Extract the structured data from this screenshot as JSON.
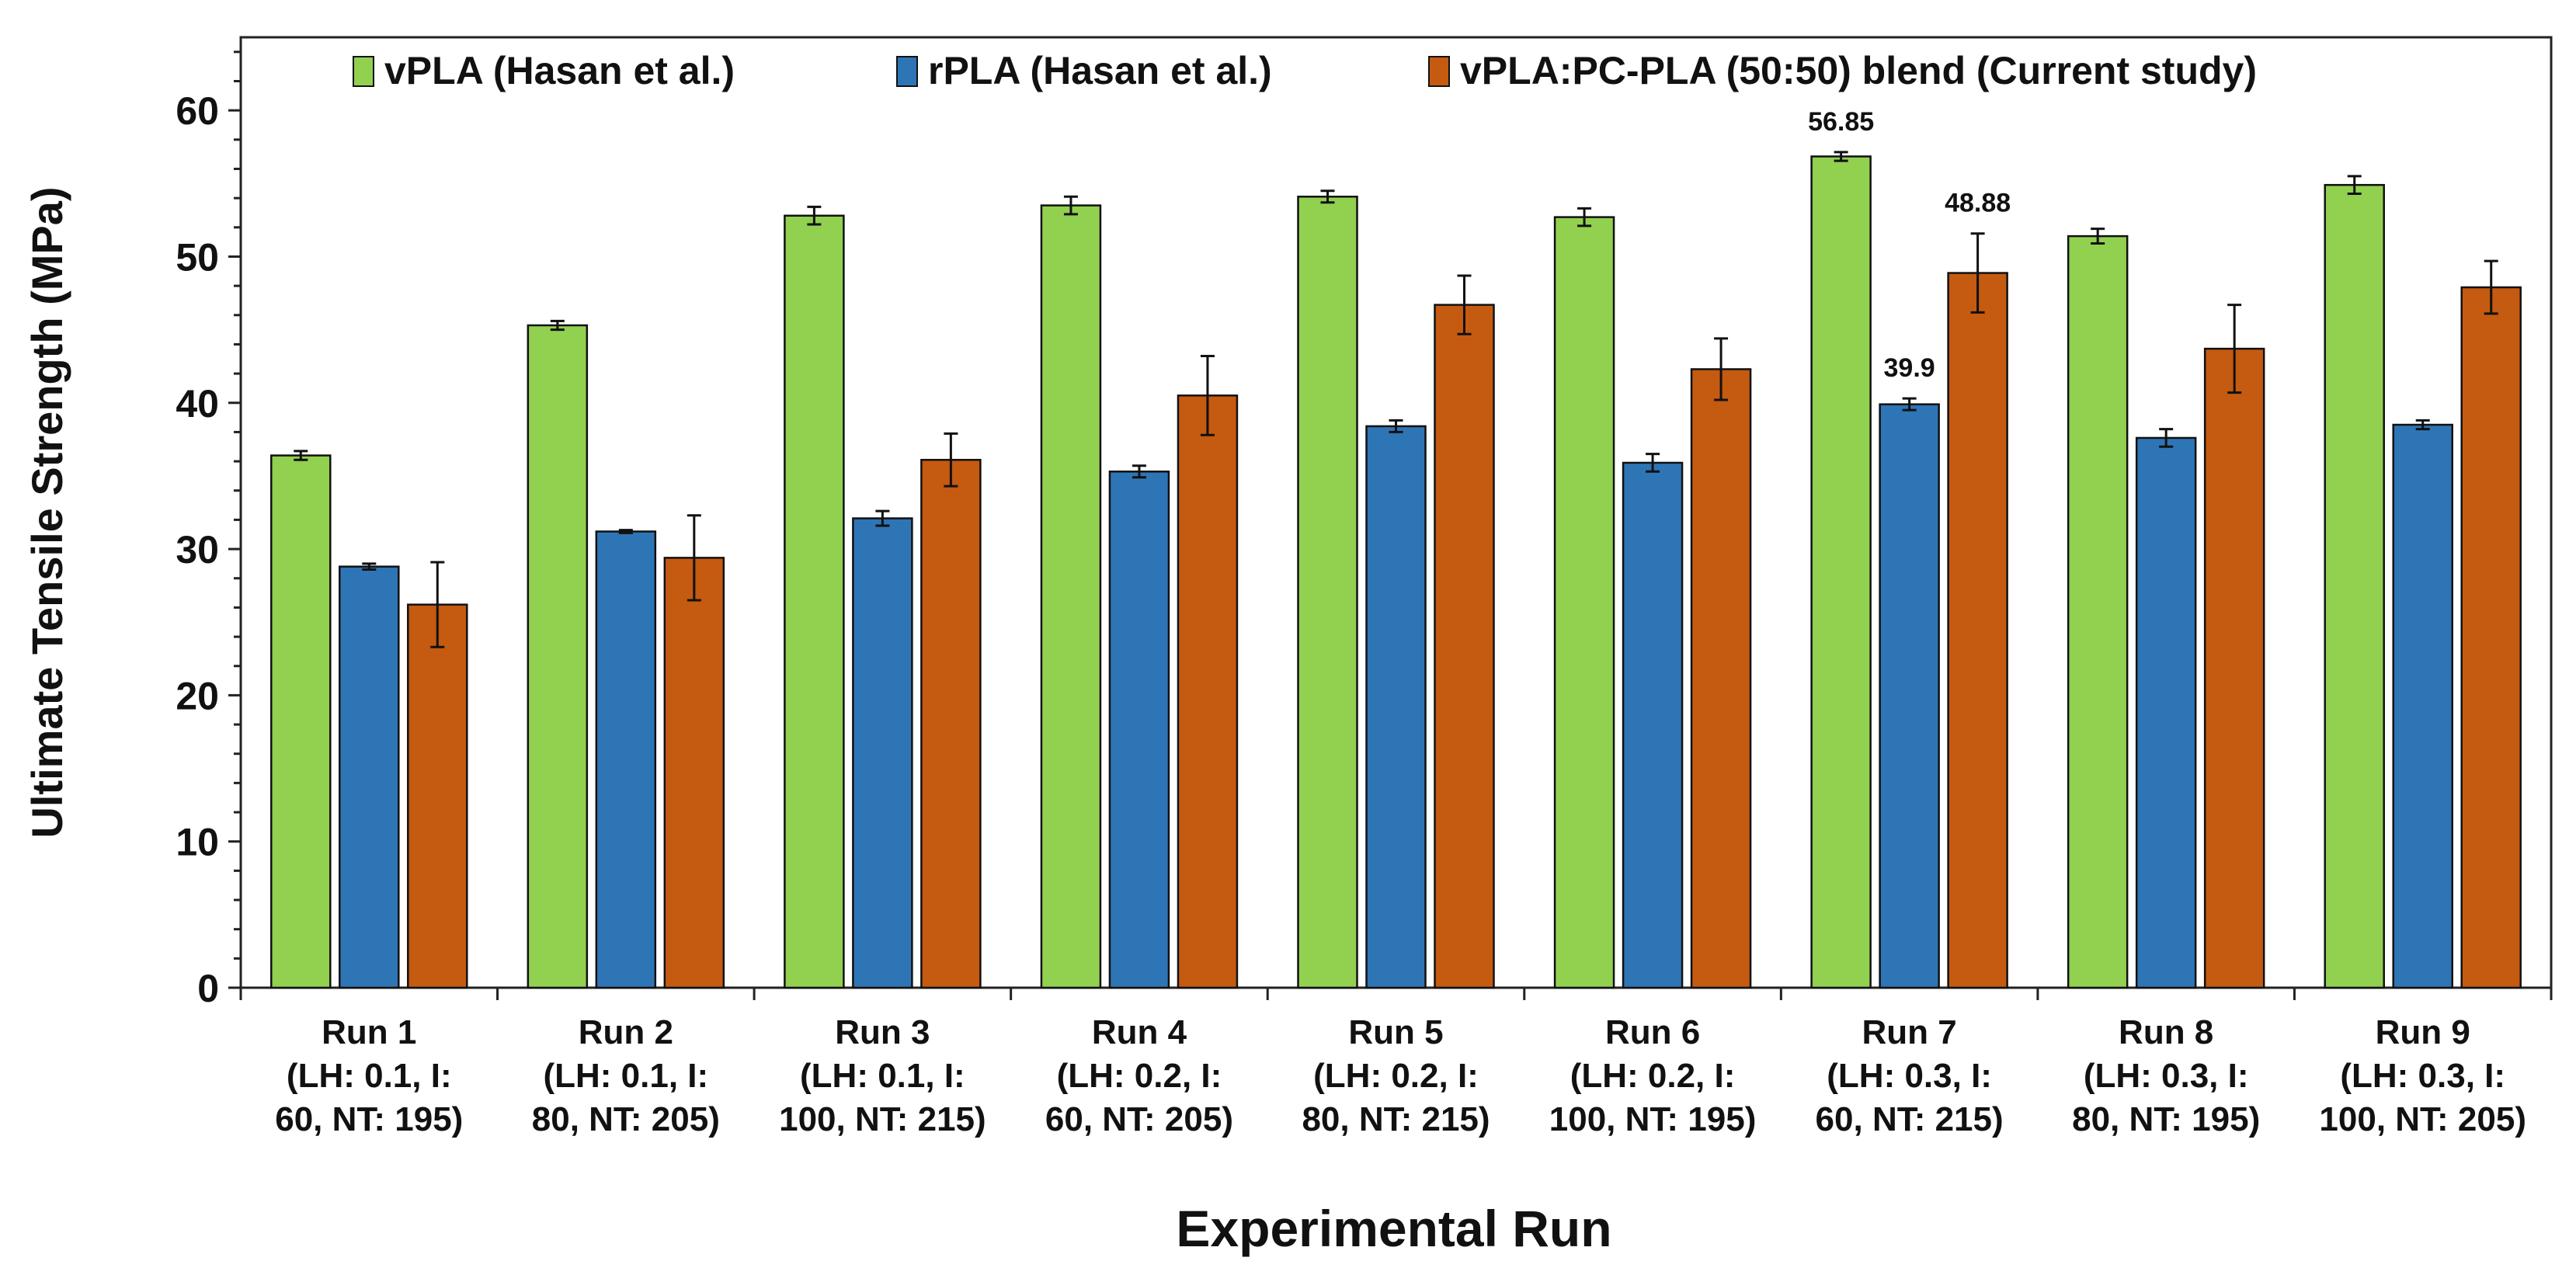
{
  "chart_data": {
    "type": "bar",
    "title": "",
    "xlabel": "Experimental Run",
    "ylabel": "Ultimate Tensile Strength (MPa)",
    "ylim": [
      0,
      65
    ],
    "yticks": [
      0,
      10,
      20,
      30,
      40,
      50,
      60
    ],
    "grid": false,
    "legend_position": "top",
    "categories": [
      {
        "name": "Run 1",
        "lines": [
          "Run 1",
          "(LH: 0.1, I:",
          "60, NT: 195)"
        ]
      },
      {
        "name": "Run 2",
        "lines": [
          "Run 2",
          "(LH: 0.1, I:",
          "80, NT: 205)"
        ]
      },
      {
        "name": "Run 3",
        "lines": [
          "Run 3",
          "(LH: 0.1, I:",
          "100, NT: 215)"
        ]
      },
      {
        "name": "Run 4",
        "lines": [
          "Run 4",
          "(LH: 0.2, I:",
          "60, NT: 205)"
        ]
      },
      {
        "name": "Run 5",
        "lines": [
          "Run 5",
          "(LH: 0.2, I:",
          "80, NT: 215)"
        ]
      },
      {
        "name": "Run 6",
        "lines": [
          "Run 6",
          "(LH: 0.2, I:",
          "100, NT: 195)"
        ]
      },
      {
        "name": "Run 7",
        "lines": [
          "Run 7",
          "(LH: 0.3, I:",
          "60, NT: 215)"
        ]
      },
      {
        "name": "Run 8",
        "lines": [
          "Run 8",
          "(LH: 0.3, I:",
          "80, NT: 195)"
        ]
      },
      {
        "name": "Run 9",
        "lines": [
          "Run 9",
          "(LH: 0.3, I:",
          "100, NT: 205)"
        ]
      }
    ],
    "series": [
      {
        "name": "vPLA (Hasan et al.)",
        "color": "#92d050",
        "values": [
          36.4,
          45.3,
          52.8,
          53.5,
          54.1,
          52.7,
          56.85,
          51.4,
          54.9
        ],
        "errors": [
          0.3,
          0.3,
          0.6,
          0.6,
          0.4,
          0.6,
          0.3,
          0.5,
          0.6
        ]
      },
      {
        "name": "rPLA (Hasan et al.)",
        "color": "#2e75b6",
        "values": [
          28.8,
          31.2,
          32.1,
          35.3,
          38.4,
          35.9,
          39.9,
          37.6,
          38.5
        ],
        "errors": [
          0.2,
          0.1,
          0.5,
          0.4,
          0.4,
          0.6,
          0.4,
          0.6,
          0.3
        ]
      },
      {
        "name": "vPLA:PC-PLA (50:50) blend (Current study)",
        "color": "#c55a11",
        "values": [
          26.2,
          29.4,
          36.1,
          40.5,
          46.7,
          42.3,
          48.88,
          43.7,
          47.9
        ],
        "errors": [
          2.9,
          2.9,
          1.8,
          2.7,
          2.0,
          2.1,
          2.7,
          3.0,
          1.8
        ]
      }
    ],
    "data_labels": [
      {
        "series": 0,
        "category": 6,
        "text": "56.85"
      },
      {
        "series": 1,
        "category": 6,
        "text": "39.9"
      },
      {
        "series": 2,
        "category": 6,
        "text": "48.88"
      }
    ]
  }
}
